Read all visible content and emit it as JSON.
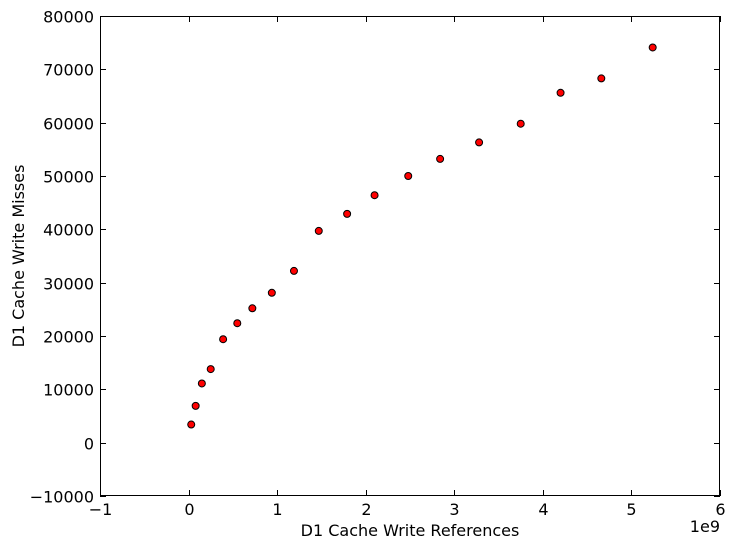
{
  "chart_data": {
    "type": "scatter",
    "title": "",
    "xlabel": "D1 Cache Write References",
    "ylabel": "D1 Cache Write Misses",
    "x_offset_label": "1e9",
    "xlim": [
      -1,
      6
    ],
    "ylim": [
      -10000,
      80000
    ],
    "xticks": [
      -1,
      0,
      1,
      2,
      3,
      4,
      5,
      6
    ],
    "xtick_labels": [
      "−1",
      "0",
      "1",
      "2",
      "3",
      "4",
      "5",
      "6"
    ],
    "yticks": [
      -10000,
      0,
      10000,
      20000,
      30000,
      40000,
      50000,
      60000,
      70000,
      80000
    ],
    "ytick_labels": [
      "−10000",
      "0",
      "10000",
      "20000",
      "30000",
      "40000",
      "50000",
      "60000",
      "70000",
      "80000"
    ],
    "grid": false,
    "marker_color": "#ff0000",
    "series": [
      {
        "x": [
          0.03,
          0.08,
          0.15,
          0.25,
          0.39,
          0.55,
          0.72,
          0.94,
          1.19,
          1.47,
          1.79,
          2.1,
          2.48,
          2.84,
          3.28,
          3.75,
          4.2,
          4.66,
          5.24
        ],
        "y": [
          3400,
          6900,
          11100,
          13800,
          19400,
          22400,
          25200,
          28100,
          32200,
          39700,
          42900,
          46400,
          50000,
          53200,
          56300,
          59800,
          65600,
          68300,
          74100
        ]
      }
    ]
  }
}
